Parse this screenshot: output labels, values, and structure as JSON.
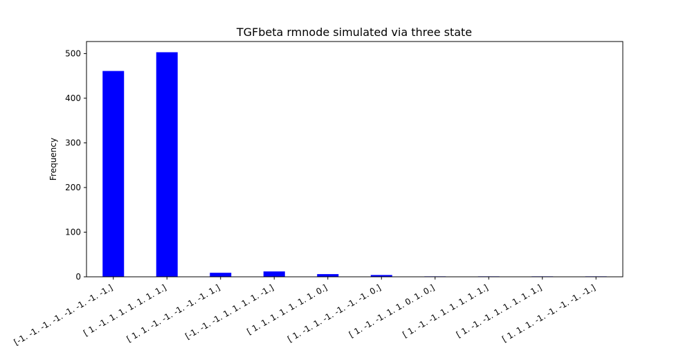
{
  "chart_data": {
    "type": "bar",
    "title": "TGFbeta rmnode simulated via three state",
    "xlabel": "",
    "ylabel": "Frequency",
    "ylim": [
      0,
      527
    ],
    "yticks": [
      0,
      100,
      200,
      300,
      400,
      500
    ],
    "grid": false,
    "bar_color": "#0000ff",
    "categories": [
      "[-1. -1. -1. -1. -1. -1. -1. -1.]",
      "[ 1. -1.  1.  1.  1.  1.  1.  1.]",
      "[ 1.  1. -1. -1. -1. -1. -1.  1.]",
      "[-1. -1. -1.  1.  1.  1.  1. -1.]",
      "[ 1.  1.  1.  1.  1.  1.  1.  0.]",
      "[ 1. -1.  1. -1. -1. -1. -1.  0.]",
      "[ 1. -1. -1.  1.  1.  0.  1.  0.]",
      "[ 1. -1. -1.  1.  1.  1.  1.  1.]",
      "[ 1. -1. -1.  1.  1.  1.  1.  1.]",
      "[ 1.  1.  1. -1. -1. -1. -1. -1.]"
    ],
    "values": [
      461,
      503,
      9,
      12,
      6,
      4,
      1,
      1,
      1,
      1
    ]
  }
}
